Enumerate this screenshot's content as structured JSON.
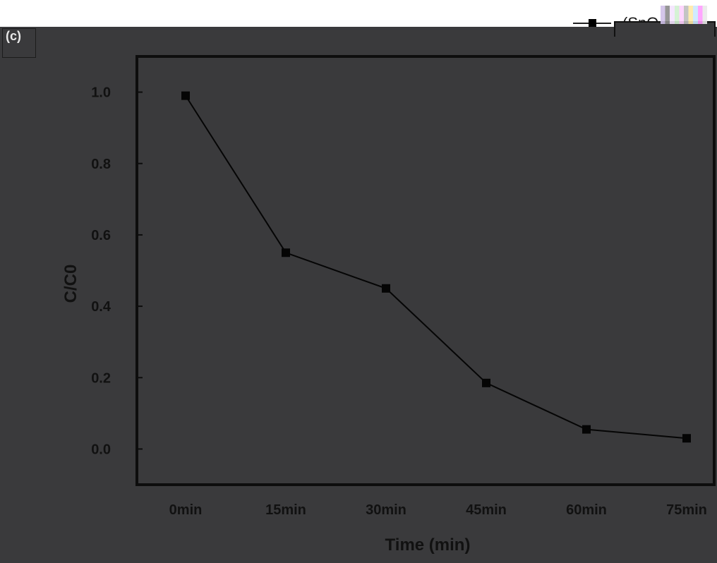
{
  "corner_label": "(c)",
  "legend": {
    "label": "(SnO"
  },
  "chart_data": {
    "type": "line",
    "categories": [
      "0min",
      "15min",
      "30min",
      "45min",
      "60min",
      "75min"
    ],
    "series": [
      {
        "name": "(SnO",
        "values": [
          0.99,
          0.55,
          0.45,
          0.185,
          0.055,
          0.03
        ]
      }
    ],
    "xlabel": "Time (min)",
    "ylabel": "C/C0",
    "ylim": [
      -0.1,
      1.1
    ],
    "yticks": [
      0.0,
      0.2,
      0.4,
      0.6,
      0.8,
      1.0
    ],
    "ytick_labels": [
      "0.0",
      "0.2",
      "0.4",
      "0.6",
      "0.8",
      "1.0"
    ],
    "grid": false,
    "legend_position": "top-right",
    "colors": {
      "background": "#3a3a3c",
      "axis": "#0d0d0d",
      "series": "#050505",
      "text": "#111111"
    }
  }
}
